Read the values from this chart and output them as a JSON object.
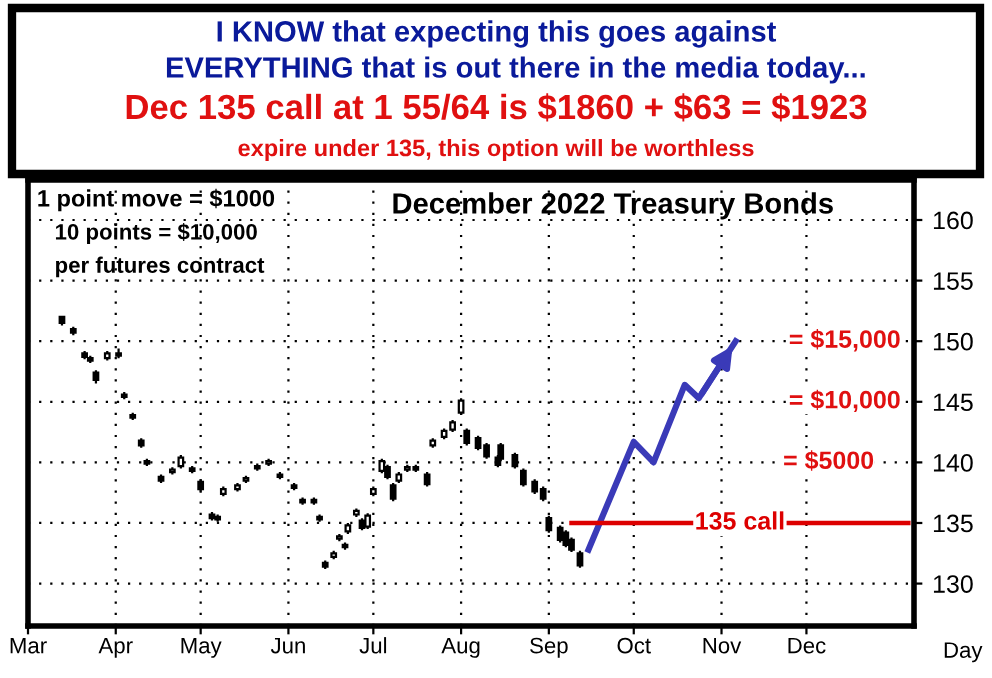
{
  "chart_data": {
    "type": "candlestick",
    "title": "December 2022 Treasury Bonds",
    "xlabel": "Day",
    "annotations": [
      "I KNOW that expecting this goes against",
      "EVERYTHING that is out there in the media today...",
      "Dec 135 call at 1 55/64 is $1860 + $63 = $1923",
      "expire under 135, this option will be worthless",
      "1 point move = $1000",
      "10 points = $10,000",
      "per futures contract",
      "= $15,000",
      "= $10,000",
      "= $5000"
    ],
    "x": [
      "2022-03-13",
      "2022-03-17",
      "2022-03-21",
      "2022-03-23",
      "2022-03-25",
      "2022-03-29",
      "2022-04-02",
      "2022-04-04",
      "2022-04-07",
      "2022-04-10",
      "2022-04-12",
      "2022-04-17",
      "2022-04-21",
      "2022-04-24",
      "2022-04-28",
      "2022-05-01",
      "2022-05-05",
      "2022-05-07",
      "2022-05-09",
      "2022-05-14",
      "2022-05-17",
      "2022-05-21",
      "2022-05-25",
      "2022-05-29",
      "2022-06-03",
      "2022-06-06",
      "2022-06-10",
      "2022-06-12",
      "2022-06-14",
      "2022-06-17",
      "2022-06-19",
      "2022-06-21",
      "2022-06-22",
      "2022-06-25",
      "2022-06-27",
      "2022-06-29",
      "2022-07-01",
      "2022-07-04",
      "2022-07-06",
      "2022-07-08",
      "2022-07-10",
      "2022-07-13",
      "2022-07-16",
      "2022-07-20",
      "2022-07-22",
      "2022-07-26",
      "2022-07-29",
      "2022-08-01",
      "2022-08-03",
      "2022-08-07",
      "2022-08-10",
      "2022-08-14",
      "2022-08-15",
      "2022-08-20",
      "2022-08-23",
      "2022-08-27",
      "2022-08-30",
      "2022-09-01",
      "2022-09-05",
      "2022-09-07",
      "2022-09-09",
      "2022-09-12"
    ],
    "ohlc": [
      [
        152,
        152,
        151.3,
        151.5
      ],
      [
        151,
        151.2,
        150.5,
        150.7
      ],
      [
        149,
        149.2,
        148.5,
        148.7
      ],
      [
        148.6,
        148.8,
        148.2,
        148.4
      ],
      [
        147.4,
        147.6,
        146.5,
        146.8
      ],
      [
        148.6,
        149.2,
        148.4,
        149
      ],
      [
        149,
        149.4,
        148.6,
        148.8
      ],
      [
        145.6,
        145.8,
        145.2,
        145.4
      ],
      [
        143.9,
        144.1,
        143.5,
        143.7
      ],
      [
        141.8,
        142,
        141.2,
        141.4
      ],
      [
        140.1,
        140.3,
        139.7,
        139.9
      ],
      [
        138.8,
        139,
        138.3,
        138.5
      ],
      [
        139.2,
        139.6,
        139,
        139.4
      ],
      [
        139.7,
        140.6,
        139.5,
        140.4
      ],
      [
        139.5,
        139.7,
        139.1,
        139.3
      ],
      [
        138.4,
        138.6,
        137.6,
        137.8
      ],
      [
        135.7,
        135.9,
        135.2,
        135.4
      ],
      [
        135.5,
        135.7,
        135.1,
        135.3
      ],
      [
        137.4,
        138,
        137.2,
        137.8
      ],
      [
        137.8,
        138.3,
        137.6,
        138.1
      ],
      [
        138.5,
        138.9,
        138.3,
        138.7
      ],
      [
        139.5,
        139.9,
        139.3,
        139.7
      ],
      [
        139.9,
        140.3,
        139.7,
        140.1
      ],
      [
        139,
        139.2,
        138.6,
        138.8
      ],
      [
        138.1,
        138.3,
        137.7,
        137.9
      ],
      [
        136.9,
        137.1,
        136.5,
        136.7
      ],
      [
        136.9,
        137.1,
        136.5,
        136.7
      ],
      [
        135.5,
        135.7,
        135.1,
        135.3
      ],
      [
        131.7,
        131.9,
        131.2,
        131.4
      ],
      [
        132.2,
        132.7,
        132,
        132.5
      ],
      [
        133.7,
        134.1,
        133.5,
        133.9
      ],
      [
        133.2,
        133.4,
        132.8,
        133
      ],
      [
        134.3,
        135,
        134.1,
        134.8
      ],
      [
        135.7,
        136.2,
        135.5,
        136
      ],
      [
        135.2,
        135.4,
        134.4,
        134.6
      ],
      [
        134.7,
        135.8,
        134.5,
        135.6
      ],
      [
        137.4,
        138,
        137.2,
        137.8
      ],
      [
        139.3,
        140.3,
        139.1,
        140.1
      ],
      [
        139.6,
        139.8,
        138.6,
        138.8
      ],
      [
        138.1,
        138.3,
        136.8,
        137
      ],
      [
        138.5,
        139.2,
        138.3,
        139
      ],
      [
        139.4,
        139.8,
        139.2,
        139.6
      ],
      [
        139.6,
        139.8,
        139.2,
        139.4
      ],
      [
        139,
        139.2,
        138,
        138.2
      ],
      [
        141.4,
        142,
        141.2,
        141.8
      ],
      [
        142.1,
        142.8,
        141.9,
        142.6
      ],
      [
        142.7,
        143.5,
        142.5,
        143.3
      ],
      [
        144.1,
        145.3,
        143.9,
        145.1
      ],
      [
        142.6,
        142.8,
        141.4,
        141.6
      ],
      [
        142,
        142.2,
        141,
        141.2
      ],
      [
        141.4,
        141.6,
        140.3,
        140.5
      ],
      [
        140.4,
        140.6,
        139.6,
        139.8
      ],
      [
        141.4,
        141.6,
        140.1,
        140.3
      ],
      [
        140.6,
        140.8,
        139.5,
        139.7
      ],
      [
        139.3,
        139.5,
        138,
        138.2
      ],
      [
        138.4,
        138.6,
        137.4,
        137.6
      ],
      [
        137.8,
        138,
        136.8,
        137
      ],
      [
        135.4,
        135.6,
        134.2,
        134.4
      ],
      [
        134.6,
        134.8,
        133.4,
        133.6
      ],
      [
        134.2,
        134.4,
        133,
        133.2
      ],
      [
        133.6,
        133.8,
        132.6,
        132.8
      ],
      [
        132.5,
        132.7,
        131.3,
        131.5
      ]
    ],
    "series": [
      {
        "type": "line",
        "color": "#3a3ab8",
        "x": [
          "2022-09-15",
          "2022-10-01",
          "2022-10-08",
          "2022-10-19",
          "2022-10-24",
          "2022-11-06"
        ],
        "values": [
          132.8,
          141.7,
          140,
          146.4,
          145.3,
          150
        ]
      },
      {
        "type": "line",
        "name": "135 call",
        "color": "#dd0000",
        "x": [
          "2022-09-09",
          "2023-01-06"
        ],
        "values": [
          135,
          135
        ]
      }
    ],
    "xlim": [
      "2022-03-01",
      "2023-01-08"
    ],
    "xticks": [
      {
        "value": "2022-03-01",
        "label": "Mar"
      },
      {
        "value": "2022-04-01",
        "label": "Apr"
      },
      {
        "value": "2022-05-01",
        "label": "May"
      },
      {
        "value": "2022-06-01",
        "label": "Jun"
      },
      {
        "value": "2022-07-01",
        "label": "Jul"
      },
      {
        "value": "2022-08-01",
        "label": "Aug"
      },
      {
        "value": "2022-09-01",
        "label": "Sep"
      },
      {
        "value": "2022-10-01",
        "label": "Oct"
      },
      {
        "value": "2022-11-01",
        "label": "Nov"
      },
      {
        "value": "2022-12-01",
        "label": "Dec"
      }
    ],
    "ylim": [
      126.5,
      163.3
    ],
    "yticks": [
      130,
      135,
      140,
      145,
      150,
      155,
      160
    ],
    "grid": true,
    "legend": false
  }
}
